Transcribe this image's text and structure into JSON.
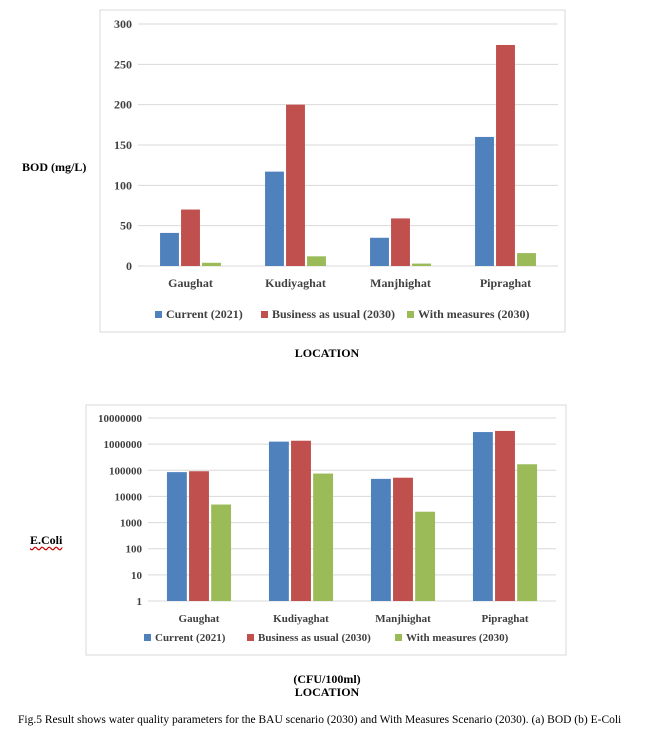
{
  "chart_data": [
    {
      "type": "bar",
      "categories": [
        "Gaughat",
        "Kudiyaghat",
        "Manjhighat",
        "Pipraghat"
      ],
      "series": [
        {
          "name": "Current (2021)",
          "color": "#4F81BD",
          "values": [
            41,
            117,
            35,
            160
          ]
        },
        {
          "name": "Business as usual (2030)",
          "color": "#C0504D",
          "values": [
            70,
            200,
            59,
            274
          ]
        },
        {
          "name": "With measures (2030)",
          "color": "#9BBB59",
          "values": [
            4,
            12,
            3,
            16
          ]
        }
      ],
      "ylabel": "BOD (mg/L)",
      "xlabel": "LOCATION",
      "ylim": [
        0,
        300
      ],
      "yticks": [
        "0",
        "50",
        "100",
        "150",
        "200",
        "250",
        "300"
      ],
      "scale": "linear",
      "grid": true,
      "legend": "bottom"
    },
    {
      "type": "bar",
      "categories": [
        "Gaughat",
        "Kudiyaghat",
        "Manjhighat",
        "Pipraghat"
      ],
      "series": [
        {
          "name": "Current (2021)",
          "color": "#4F81BD",
          "values": [
            85000,
            1250000,
            47000,
            2900000
          ]
        },
        {
          "name": "Business as usual (2030)",
          "color": "#C0504D",
          "values": [
            92000,
            1350000,
            52000,
            3200000
          ]
        },
        {
          "name": "With measures (2030)",
          "color": "#9BBB59",
          "values": [
            4900,
            75000,
            2600,
            170000
          ]
        }
      ],
      "ylabel": "E.Coli",
      "unit": "(CFU/100ml)",
      "xlabel": "LOCATION",
      "ylim": [
        1,
        10000000
      ],
      "yticks": [
        "1",
        "10",
        "100",
        "1000",
        "10000",
        "100000",
        "1000000",
        "10000000"
      ],
      "scale": "log",
      "grid": true,
      "legend": "bottom"
    }
  ],
  "caption": "Fig.5  Result shows water quality parameters for the BAU scenario (2030) and With Measures Scenario (2030). (a) BOD (b) E-Coli"
}
